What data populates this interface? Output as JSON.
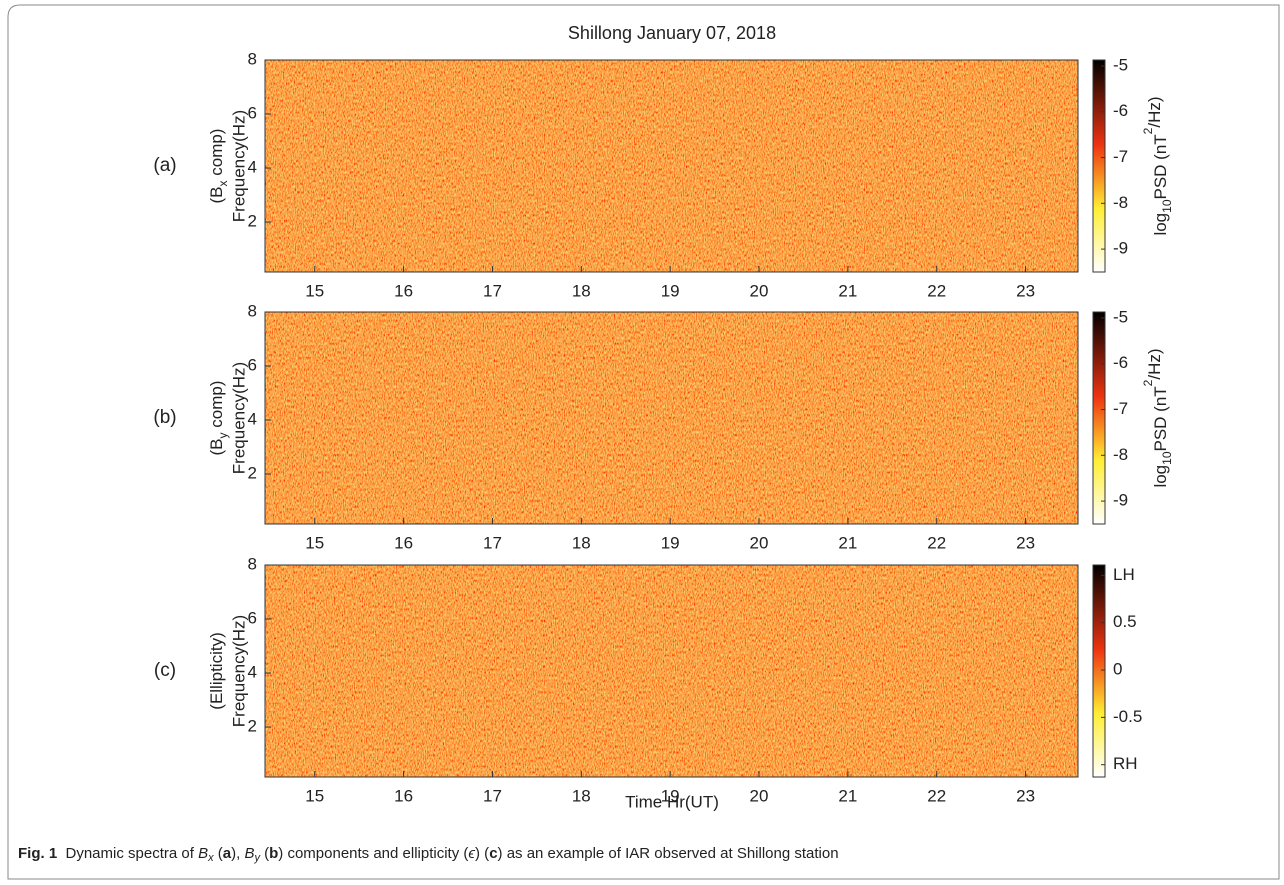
{
  "title": "Shillong  January 07, 2018",
  "xlabel": "Time Hr(UT)",
  "xlim": [
    14.44,
    23.59
  ],
  "xticks": [
    15,
    16,
    17,
    18,
    19,
    20,
    21,
    22,
    23
  ],
  "panels": [
    {
      "label": "(a)",
      "ylabel_component": [
        "(B",
        "x",
        " comp)"
      ],
      "ylabel": "Frequency(Hz)",
      "ylim": [
        0.15,
        8
      ],
      "yticks": [
        2,
        4,
        6,
        8
      ],
      "clim": [
        -9.5,
        -4.87
      ],
      "cticks": [
        -9,
        -8,
        -7,
        -6,
        -5
      ],
      "cbar_label": [
        "log",
        "10",
        "PSD (nT",
        "2",
        "/Hz)"
      ]
    },
    {
      "label": "(b)",
      "ylabel_component": [
        "(B",
        "y",
        " comp)"
      ],
      "ylabel": "Frequency(Hz)",
      "ylim": [
        0.15,
        8
      ],
      "yticks": [
        2,
        4,
        6,
        8
      ],
      "clim": [
        -9.5,
        -4.87
      ],
      "cticks": [
        -9,
        -8,
        -7,
        -6,
        -5
      ],
      "cbar_label": [
        "log",
        "10",
        "PSD (nT",
        "2",
        "/Hz)"
      ]
    },
    {
      "label": "(c)",
      "ylabel_component": [
        "(Ellipticity)"
      ],
      "ylabel": "Frequency(Hz)",
      "ylim": [
        0.15,
        8
      ],
      "yticks": [
        2,
        4,
        6,
        8
      ],
      "clim": [
        -1.13,
        1.11
      ],
      "cticks": [
        {
          "value": -1,
          "label": "RH"
        },
        {
          "value": -0.5,
          "label": "-0.5"
        },
        0,
        0.5,
        {
          "value": 1,
          "label": "LH"
        }
      ]
    }
  ],
  "caption": [
    "Fig. 1",
    "  Dynamic spectra of ",
    "B",
    "x",
    " (",
    "a",
    "), ",
    "B",
    "y",
    " (",
    "b",
    ") components and ellipticity (",
    "ϵ",
    ") (",
    "c",
    ") as an example of IAR observed at Shillong station"
  ]
}
